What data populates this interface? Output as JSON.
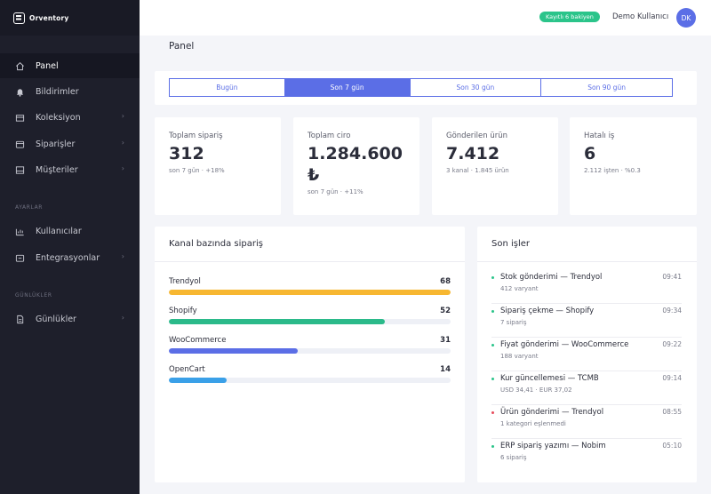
{
  "app": {
    "name": "Orventory"
  },
  "sidebar": {
    "items": [
      {
        "label": "Panel",
        "icon": "home-icon",
        "active": true
      },
      {
        "label": "Bildirimler",
        "icon": "bell-icon"
      },
      {
        "label": "Koleksiyon",
        "icon": "box-icon",
        "chevron": "›"
      },
      {
        "label": "Siparişler",
        "icon": "cart-icon",
        "chevron": "›"
      },
      {
        "label": "Müşteriler",
        "icon": "users-icon",
        "chevron": "›"
      }
    ],
    "sections": [
      {
        "title": "AYARLAR",
        "items": [
          {
            "label": "Kullanıcılar",
            "icon": "user-group-icon"
          },
          {
            "label": "Entegrasyonlar",
            "icon": "plug-icon",
            "chevron": "›"
          }
        ]
      },
      {
        "title": "GÜNLÜKLER",
        "items": [
          {
            "label": "Günlükler",
            "icon": "document-icon",
            "chevron": "›"
          }
        ]
      }
    ]
  },
  "header": {
    "badge": "Kayıtlı 6 bakiyen",
    "user_name": "Demo Kullanıcı",
    "avatar_initials": "DK"
  },
  "page_title": "Panel",
  "tabs": [
    {
      "label": "Bugün"
    },
    {
      "label": "Son 7 gün",
      "active": true
    },
    {
      "label": "Son 30 gün"
    },
    {
      "label": "Son 90 gün"
    }
  ],
  "stats": [
    {
      "label": "Toplam sipariş",
      "value": "312",
      "sub": "son 7 gün · +18%"
    },
    {
      "label": "Toplam ciro",
      "value": "1.284.600 ₺",
      "sub": "son 7 gün · +11%"
    },
    {
      "label": "Gönderilen ürün",
      "value": "7.412",
      "sub": "3 kanal · 1.845 ürün"
    },
    {
      "label": "Hatalı iş",
      "value": "6",
      "sub": "2.112 işten · %0.3"
    }
  ],
  "channels": {
    "title": "Kanal bazında sipariş",
    "items": [
      {
        "name": "Trendyol",
        "count": "68",
        "fill": 1.0,
        "color": "#f7b731"
      },
      {
        "name": "Shopify",
        "count": "52",
        "fill": 0.765,
        "color": "#2bba8a"
      },
      {
        "name": "WooCommerce",
        "count": "31",
        "fill": 0.456,
        "color": "#5b6ee6"
      },
      {
        "name": "OpenCart",
        "count": "14",
        "fill": 0.206,
        "color": "#3aa0e8"
      }
    ]
  },
  "recent_jobs": {
    "title": "Son işler",
    "items": [
      {
        "title": "Stok gönderimi — Trendyol",
        "sub": "412 varyant",
        "time": "09:41",
        "status_color": "#2bc48a"
      },
      {
        "title": "Sipariş çekme — Shopify",
        "sub": "7 sipariş",
        "time": "09:34",
        "status_color": "#2bc48a"
      },
      {
        "title": "Fiyat gönderimi — WooCommerce",
        "sub": "188 varyant",
        "time": "09:22",
        "status_color": "#2bc48a"
      },
      {
        "title": "Kur güncellemesi — TCMB",
        "sub": "USD 34,41 · EUR 37,02",
        "time": "09:14",
        "status_color": "#2bc48a"
      },
      {
        "title": "Ürün gönderimi — Trendyol",
        "sub": "1 kategori eşlenmedi",
        "time": "08:55",
        "status_color": "#e74c5c"
      },
      {
        "title": "ERP sipariş yazımı — Nobim",
        "sub": "6 sipariş",
        "time": "05:10",
        "status_color": "#2bc48a"
      }
    ]
  }
}
